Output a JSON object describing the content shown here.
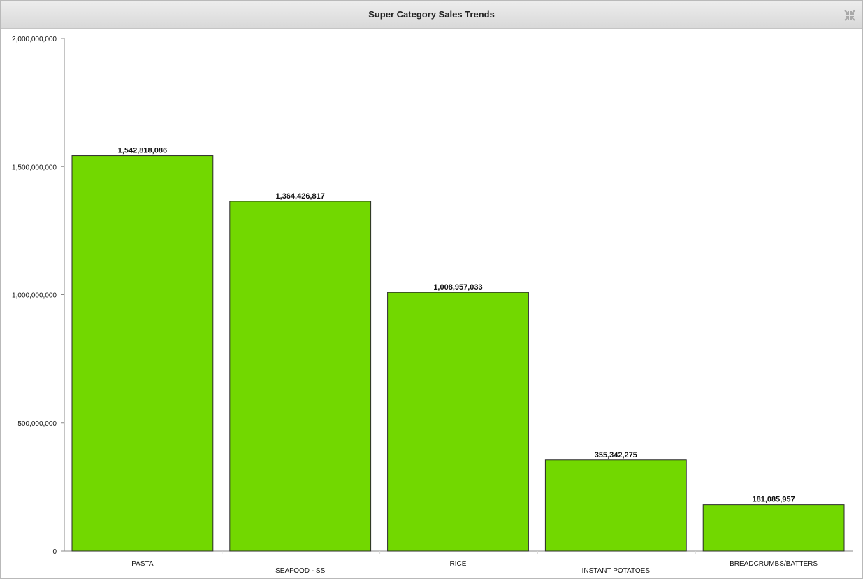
{
  "panel": {
    "title": "Super Category Sales Trends",
    "collapse_icon": "collapse-arrows-icon"
  },
  "colors": {
    "bar_fill": "#72d800",
    "bar_stroke": "#2a2a2a",
    "axis": "#888888",
    "text": "#111111"
  },
  "chart_data": {
    "type": "bar",
    "title": "Super Category Sales Trends",
    "categories": [
      "PASTA",
      "SEAFOOD - SS",
      "RICE",
      "INSTANT POTATOES",
      "BREADCRUMBS/BATTERS"
    ],
    "values": [
      1542818086,
      1364426817,
      1008957033,
      355342275,
      181085957
    ],
    "value_labels": [
      "1,542,818,086",
      "1,364,426,817",
      "1,008,957,033",
      "355,342,275",
      "181,085,957"
    ],
    "xlabel": "",
    "ylabel": "",
    "ylim": [
      0,
      2000000000
    ],
    "yticks": [
      0,
      500000000,
      1000000000,
      1500000000,
      2000000000
    ],
    "ytick_labels": [
      "0",
      "500,000,000",
      "1,000,000,000",
      "1,500,000,000",
      "2,000,000,000"
    ],
    "grid": false,
    "legend": "none"
  }
}
